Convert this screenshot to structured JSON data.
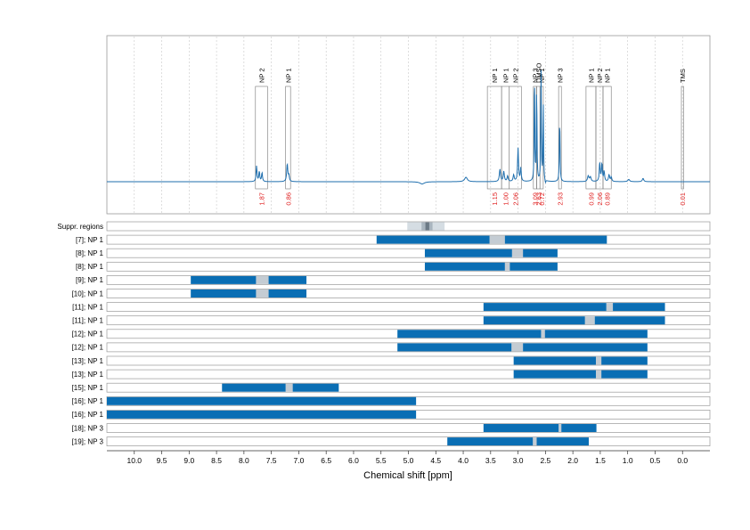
{
  "chart_data": {
    "type": "nmr-spectrum-with-region-bars",
    "xlabel": "Chemical shift [ppm]",
    "xlim": [
      10.5,
      -0.5
    ],
    "x_reversed": true,
    "x_ticks": [
      "10.0",
      "9.5",
      "9.0",
      "8.5",
      "8.0",
      "7.5",
      "7.0",
      "6.5",
      "6.0",
      "5.5",
      "5.0",
      "4.5",
      "4.0",
      "3.5",
      "3.0",
      "2.5",
      "2.0",
      "1.5",
      "1.0",
      "0.5",
      "0.0"
    ],
    "x_tick_values": [
      10.0,
      9.5,
      9.0,
      8.5,
      8.0,
      7.5,
      7.0,
      6.5,
      6.0,
      5.5,
      5.0,
      4.5,
      4.0,
      3.5,
      3.0,
      2.5,
      2.0,
      1.5,
      1.0,
      0.5,
      0.0
    ],
    "grid": true,
    "colors": {
      "spectrum": "#1f6fae",
      "bar": "#0a6eb4",
      "bar_gap": "#c4ccd3",
      "integral_label": "#e02020",
      "peak_box": "#777777",
      "row_border": "#999999",
      "grid": "#c8c8c8",
      "suppr_light": "#d5dde3",
      "suppr_mid": "#a9b5bf",
      "suppr_dark": "#6c7a86"
    },
    "spectrum": {
      "baseline": 0,
      "ymax": 125,
      "peaks": [
        {
          "x": 7.77,
          "h": 14,
          "w": 0.01
        },
        {
          "x": 7.72,
          "h": 9,
          "w": 0.01
        },
        {
          "x": 7.67,
          "h": 8,
          "w": 0.01
        },
        {
          "x": 7.21,
          "h": 16,
          "w": 0.012
        },
        {
          "x": 7.18,
          "h": 5,
          "w": 0.01
        },
        {
          "x": 3.95,
          "h": 4,
          "w": 0.03
        },
        {
          "x": 3.33,
          "h": 11,
          "w": 0.013
        },
        {
          "x": 3.26,
          "h": 9,
          "w": 0.012
        },
        {
          "x": 3.19,
          "h": 5,
          "w": 0.012
        },
        {
          "x": 3.08,
          "h": 6,
          "w": 0.012
        },
        {
          "x": 3.0,
          "h": 30,
          "w": 0.01
        },
        {
          "x": 2.95,
          "h": 12,
          "w": 0.01
        },
        {
          "x": 2.7,
          "h": 104,
          "w": 0.006
        },
        {
          "x": 2.66,
          "h": 88,
          "w": 0.006
        },
        {
          "x": 2.58,
          "h": 98,
          "w": 0.006
        },
        {
          "x": 2.54,
          "h": 70,
          "w": 0.006
        },
        {
          "x": 2.24,
          "h": 58,
          "w": 0.007
        },
        {
          "x": 1.72,
          "h": 5,
          "w": 0.015
        },
        {
          "x": 1.68,
          "h": 4,
          "w": 0.015
        },
        {
          "x": 1.51,
          "h": 17,
          "w": 0.01
        },
        {
          "x": 1.47,
          "h": 16,
          "w": 0.01
        },
        {
          "x": 1.43,
          "h": 9,
          "w": 0.01
        },
        {
          "x": 1.34,
          "h": 6,
          "w": 0.012
        },
        {
          "x": 1.3,
          "h": 4,
          "w": 0.012
        },
        {
          "x": 0.98,
          "h": 2,
          "w": 0.02
        },
        {
          "x": 0.72,
          "h": 3,
          "w": 0.015
        }
      ],
      "dips": [
        {
          "x": 4.75,
          "h": -2,
          "w": 0.05
        },
        {
          "x": 2.5,
          "h": -3,
          "w": 0.008
        }
      ]
    },
    "peak_annotations": [
      {
        "label": "NP 2",
        "from": 7.79,
        "to": 7.57,
        "integral": "1.87"
      },
      {
        "label": "NP 1",
        "from": 7.24,
        "to": 7.15,
        "integral": "0.86"
      },
      {
        "label": "NP 1",
        "from": 3.56,
        "to": 3.3,
        "integral": "1.15"
      },
      {
        "label": "NP 1",
        "from": 3.3,
        "to": 3.16,
        "integral": "1.00"
      },
      {
        "label": "NP 2",
        "from": 3.16,
        "to": 2.94,
        "integral": "2.06"
      },
      {
        "label": "NP 3",
        "from": 2.72,
        "to": 2.66,
        "integral": "3.09"
      },
      {
        "label": "DMSO",
        "from": 2.66,
        "to": 2.6,
        "integral": "2.63"
      },
      {
        "label": "NP 1",
        "from": 2.6,
        "to": 2.54,
        "integral": "0.72"
      },
      {
        "label": "NP 3",
        "from": 2.26,
        "to": 2.21,
        "integral": "2.93"
      },
      {
        "label": "NP 1",
        "from": 1.76,
        "to": 1.58,
        "integral": "0.99"
      },
      {
        "label": "NP 2",
        "from": 1.58,
        "to": 1.45,
        "integral": "2.06"
      },
      {
        "label": "NP 1",
        "from": 1.45,
        "to": 1.3,
        "integral": "0.89"
      },
      {
        "label": "TMS",
        "from": 0.02,
        "to": -0.02,
        "integral": "0.01"
      }
    ],
    "suppressed_regions": {
      "label": "Suppr. regions",
      "zones": [
        {
          "from": 5.02,
          "to": 4.34,
          "level": "light"
        },
        {
          "from": 4.76,
          "to": 4.56,
          "level": "mid"
        },
        {
          "from": 4.69,
          "to": 4.62,
          "level": "dark"
        }
      ]
    },
    "rows": [
      {
        "label": "[7]; NP 1",
        "segments": [
          [
            5.58,
            3.52
          ],
          [
            3.24,
            1.38
          ]
        ],
        "gaps": [
          [
            3.52,
            3.24
          ]
        ]
      },
      {
        "label": "[8]; NP 1",
        "segments": [
          [
            4.7,
            3.11
          ],
          [
            2.91,
            2.28
          ]
        ],
        "gaps": [
          [
            3.11,
            2.91
          ]
        ]
      },
      {
        "label": "[8]; NP 1",
        "segments": [
          [
            4.7,
            3.24
          ],
          [
            3.15,
            2.28
          ]
        ],
        "gaps": [
          [
            3.24,
            3.15
          ]
        ]
      },
      {
        "label": "[9]; NP 1",
        "segments": [
          [
            8.97,
            7.78
          ],
          [
            7.55,
            6.86
          ]
        ],
        "gaps": [
          [
            7.78,
            7.55
          ]
        ]
      },
      {
        "label": "[10]; NP 1",
        "segments": [
          [
            8.97,
            7.78
          ],
          [
            7.55,
            6.86
          ]
        ],
        "gaps": [
          [
            7.78,
            7.55
          ]
        ]
      },
      {
        "label": "[11]; NP 1",
        "segments": [
          [
            3.63,
            1.39
          ],
          [
            1.27,
            0.32
          ]
        ],
        "gaps": [
          [
            1.39,
            1.27
          ]
        ]
      },
      {
        "label": "[11]; NP 1",
        "segments": [
          [
            3.63,
            1.78
          ],
          [
            1.6,
            0.32
          ]
        ],
        "gaps": [
          [
            1.78,
            1.6
          ]
        ]
      },
      {
        "label": "[12]; NP 1",
        "segments": [
          [
            5.2,
            2.58
          ],
          [
            2.51,
            0.64
          ]
        ],
        "gaps": [
          [
            2.58,
            2.51
          ]
        ]
      },
      {
        "label": "[12]; NP 1",
        "segments": [
          [
            5.2,
            3.12
          ],
          [
            2.91,
            0.64
          ]
        ],
        "gaps": [
          [
            3.12,
            2.91
          ]
        ]
      },
      {
        "label": "[13]; NP 1",
        "segments": [
          [
            3.08,
            1.58
          ],
          [
            1.48,
            0.64
          ]
        ],
        "gaps": [
          [
            1.58,
            1.48
          ]
        ]
      },
      {
        "label": "[13]; NP 1",
        "segments": [
          [
            3.08,
            1.58
          ],
          [
            1.48,
            0.64
          ]
        ],
        "gaps": [
          [
            1.58,
            1.48
          ]
        ]
      },
      {
        "label": "[15]; NP 1",
        "segments": [
          [
            8.4,
            7.24
          ],
          [
            7.11,
            6.27
          ]
        ],
        "gaps": [
          [
            7.24,
            7.11
          ]
        ]
      },
      {
        "label": "[16]; NP 1",
        "segments": [
          [
            10.5,
            4.86
          ]
        ],
        "gaps": []
      },
      {
        "label": "[16]; NP 1",
        "segments": [
          [
            10.5,
            4.86
          ]
        ],
        "gaps": []
      },
      {
        "label": "[18]; NP 3",
        "segments": [
          [
            3.63,
            2.26
          ],
          [
            2.21,
            1.57
          ]
        ],
        "gaps": [
          [
            2.26,
            2.21
          ]
        ]
      },
      {
        "label": "[19]; NP 3",
        "segments": [
          [
            4.29,
            2.73
          ],
          [
            2.66,
            1.71
          ]
        ],
        "gaps": [
          [
            2.73,
            2.66
          ]
        ]
      }
    ]
  }
}
